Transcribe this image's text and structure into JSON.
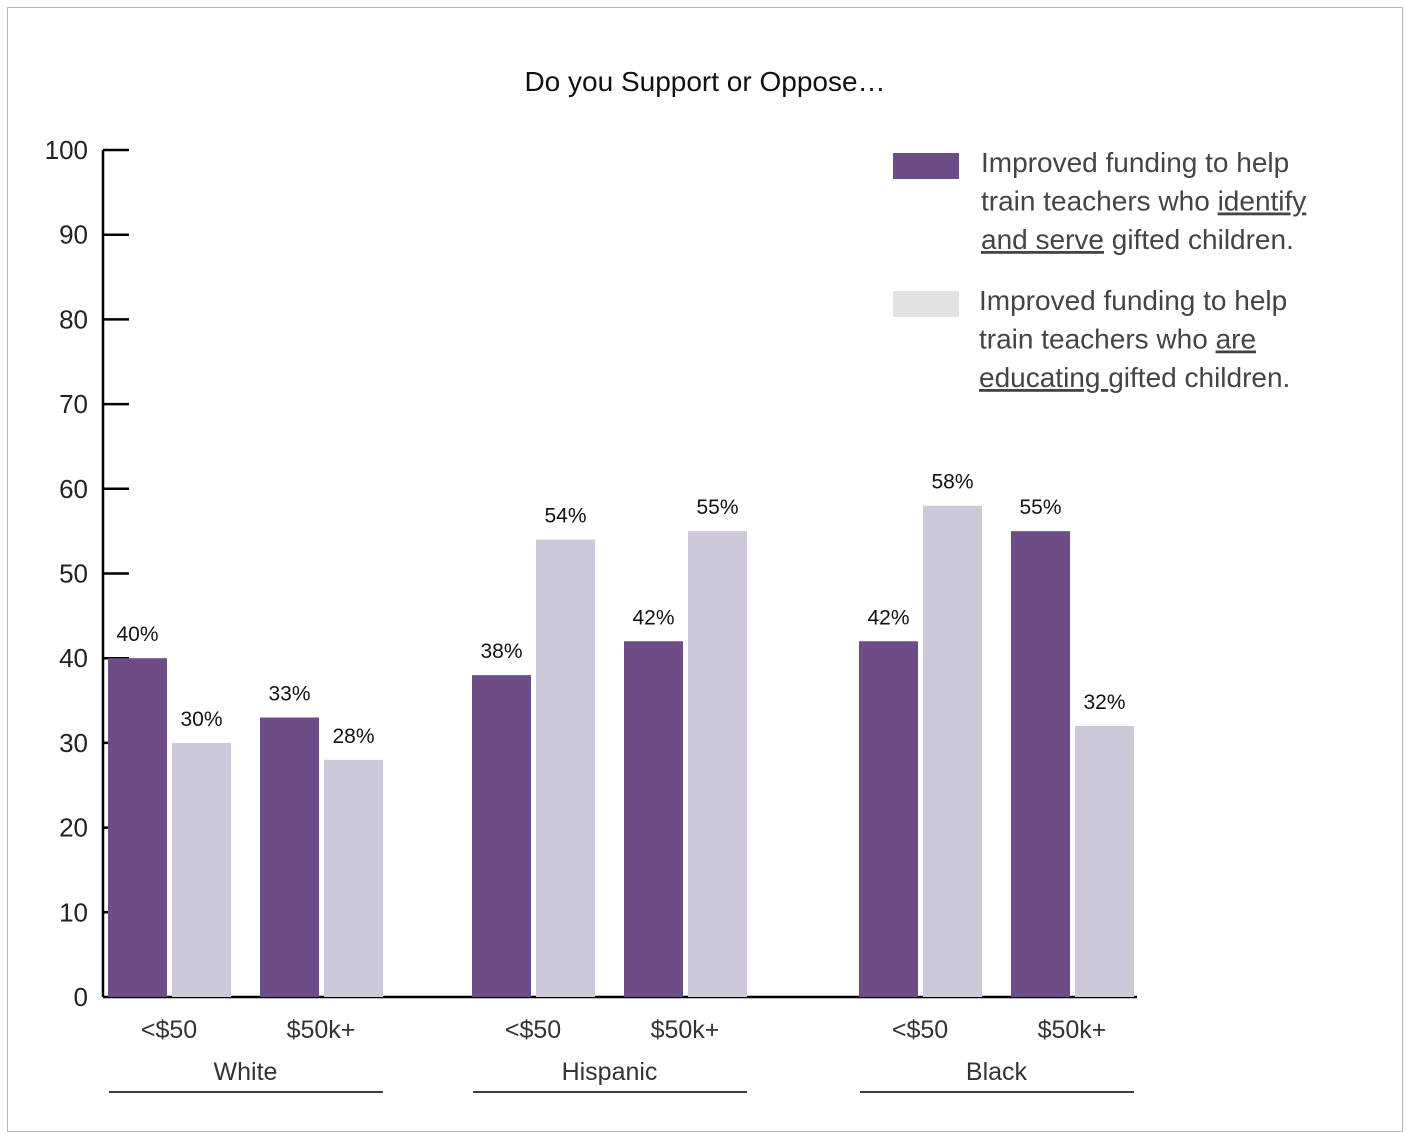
{
  "chart_data": {
    "type": "bar",
    "title": "Do you Support or Oppose…",
    "xlabel": "",
    "ylabel": "",
    "ylim": [
      0,
      100
    ],
    "yticks": [
      0,
      10,
      20,
      30,
      40,
      50,
      60,
      70,
      80,
      90,
      100
    ],
    "grid": false,
    "legend_position": "top-right",
    "groups": [
      {
        "name": "White",
        "categories": [
          "<$50",
          "$50k+"
        ]
      },
      {
        "name": "Hispanic",
        "categories": [
          "<$50",
          "$50k+"
        ]
      },
      {
        "name": "Black",
        "categories": [
          "<$50",
          "$50k+"
        ]
      }
    ],
    "series": [
      {
        "legend_lines": [
          [
            {
              "text": "Improved funding to help",
              "u": false
            }
          ],
          [
            {
              "text": "train teachers who ",
              "u": false
            },
            {
              "text": "identify",
              "u": true
            }
          ],
          [
            {
              "text": "and serve",
              "u": true
            },
            {
              "text": " gifted children.",
              "u": false
            }
          ]
        ],
        "color": "#6e4c87",
        "values": [
          40,
          33,
          38,
          42,
          42,
          55
        ],
        "labels": [
          "40%",
          "33%",
          "38%",
          "42%",
          "42%",
          "55%"
        ]
      },
      {
        "legend_lines": [
          [
            {
              "text": "Improved funding to help",
              "u": false
            }
          ],
          [
            {
              "text": "train teachers who ",
              "u": false
            },
            {
              "text": "are",
              "u": true
            }
          ],
          [
            {
              "text": "educating ",
              "u": true
            },
            {
              "text": "gifted children.",
              "u": false
            }
          ]
        ],
        "color": "#cfc7da",
        "legend_color": "#e2e2e2",
        "values": [
          30,
          28,
          54,
          55,
          58,
          32
        ],
        "labels": [
          "30%",
          "28%",
          "54%",
          "55%",
          "58%",
          "32%"
        ]
      }
    ]
  }
}
